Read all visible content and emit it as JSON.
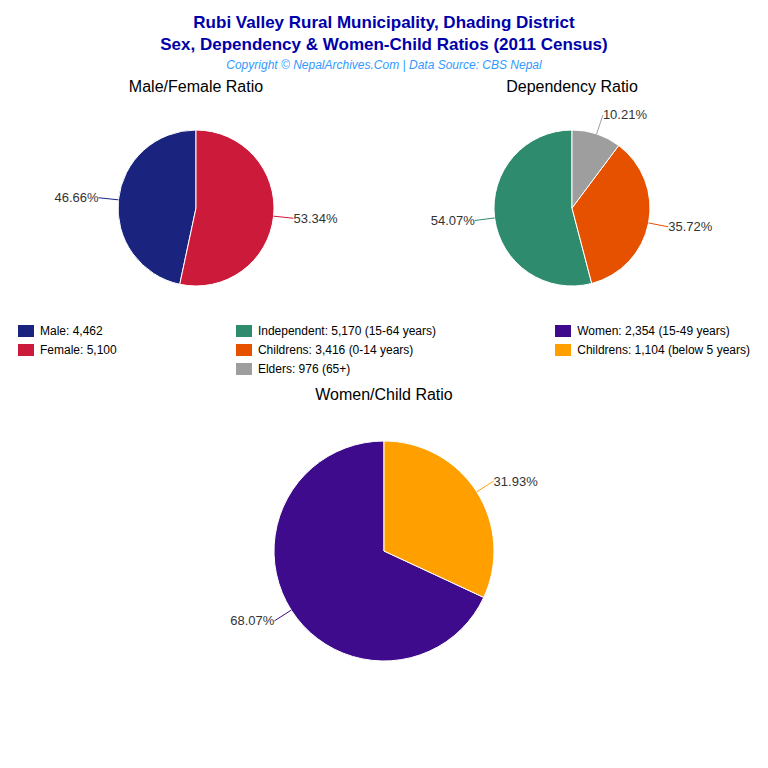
{
  "title": [
    "Rubi Valley Rural Municipality, Dhading District",
    "Sex, Dependency & Women-Child Ratios (2011 Census)"
  ],
  "subtitle": "Copyright © NepalArchives.Com | Data Source: CBS Nepal",
  "chart_data": [
    {
      "type": "pie",
      "title": "Male/Female Ratio",
      "categories": [
        "Male: 4,462",
        "Female: 5,100"
      ],
      "values": [
        46.66,
        53.34
      ],
      "value_labels": [
        "46.66%",
        "53.34%"
      ],
      "colors": [
        "#1a237e",
        "#cc1a3a"
      ],
      "data_labels": true
    },
    {
      "type": "pie",
      "title": "Dependency Ratio",
      "categories": [
        "Independent: 5,170 (15-64 years)",
        "Childrens: 3,416 (0-14 years)",
        "Elders: 976 (65+)"
      ],
      "values": [
        54.07,
        35.72,
        10.21
      ],
      "value_labels": [
        "54.07%",
        "35.72%",
        "10.21%"
      ],
      "colors": [
        "#2e8b6e",
        "#e65100",
        "#9e9e9e"
      ],
      "data_labels": true
    },
    {
      "type": "pie",
      "title": "Women/Child Ratio",
      "categories": [
        "Women: 2,354 (15-49 years)",
        "Childrens: 1,104 (below 5 years)"
      ],
      "values": [
        68.07,
        31.93
      ],
      "value_labels": [
        "68.07%",
        "31.93%"
      ],
      "colors": [
        "#3d0b8c",
        "#ffa000"
      ],
      "data_labels": true
    }
  ]
}
